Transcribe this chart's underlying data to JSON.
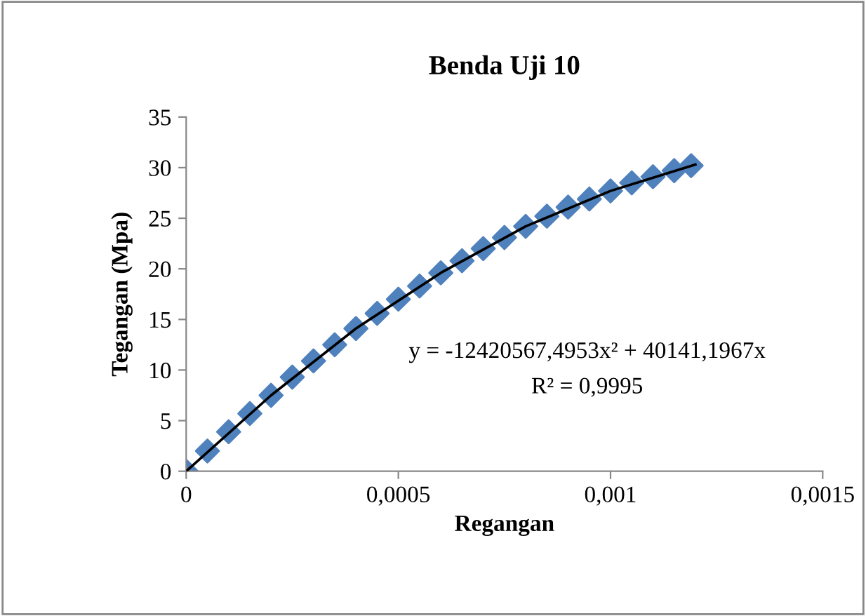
{
  "chart_data": {
    "type": "scatter",
    "title": "Benda Uji 10",
    "xlabel": "Regangan",
    "ylabel": "Tegangan (Mpa)",
    "xlim": [
      0,
      0.0015
    ],
    "xticks": [
      0,
      {
        "value": 0.0005,
        "label": "0,0005"
      },
      {
        "value": 0.001,
        "label": "0,001"
      },
      {
        "value": 0.0015,
        "label": "0,0015"
      }
    ],
    "ylim": [
      0,
      35
    ],
    "yticks": [
      0,
      5,
      10,
      15,
      20,
      25,
      30,
      35
    ],
    "grid": false,
    "legend": false,
    "series": [
      {
        "color": "#4f81bd",
        "marker": "diamond",
        "x": [
          0,
          5e-05,
          0.0001,
          0.00015,
          0.0002,
          0.00025,
          0.0003,
          0.00035,
          0.0004,
          0.00045,
          0.0005,
          0.00055,
          0.0006,
          0.00065,
          0.0007,
          0.00075,
          0.0008,
          0.00085,
          0.0009,
          0.00095,
          0.001,
          0.00105,
          0.0011,
          0.00115,
          0.00119
        ],
        "values": [
          0,
          2.0,
          3.9,
          5.7,
          7.5,
          9.3,
          10.9,
          12.5,
          14.1,
          15.6,
          17.0,
          18.3,
          19.6,
          20.8,
          22.0,
          23.1,
          24.2,
          25.2,
          26.1,
          26.9,
          27.7,
          28.5,
          29.1,
          29.7,
          30.2
        ]
      },
      {
        "type": "line",
        "color": "#000000",
        "marker": "none",
        "line_style": "solid",
        "x": [
          0,
          0.0002,
          0.0004,
          0.0006,
          0.0008,
          0.001,
          0.0012
        ],
        "values": [
          0,
          7.5,
          14.1,
          19.6,
          24.2,
          27.7,
          30.3
        ]
      }
    ],
    "annotations": [
      "y = -12420567,4953x² + 40141,1967x",
      "R² = 0,9995"
    ]
  }
}
